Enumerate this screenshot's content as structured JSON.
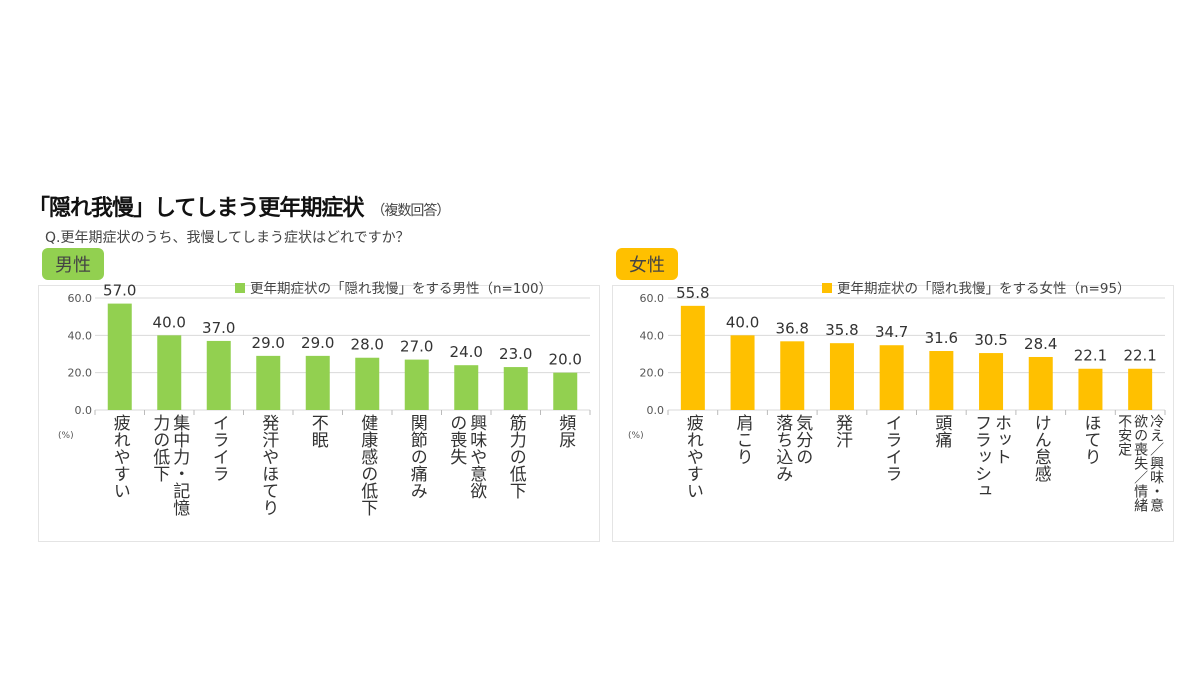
{
  "title": "「隠れ我慢」してしまう更年期症状",
  "title_note": "（複数回答）",
  "question": "Q.更年期症状のうち、我慢してしまう症状はどれですか？",
  "chart_data": [
    {
      "type": "bar",
      "badge": "男性",
      "color": "#92d050",
      "legend": "更年期症状の「隠れ我慢」をする男性（n=100）",
      "unit": "(%)",
      "ylim": [
        0,
        60
      ],
      "yticks": [
        "0.0",
        "20.0",
        "40.0",
        "60.0"
      ],
      "categories": [
        "疲れやすい",
        "集中力・記憶\n力の低下",
        "イライラ",
        "発汗やほてり",
        "不眠",
        "健康感の低下",
        "関節の痛み",
        "興味や意欲\nの喪失",
        "筋力の低下",
        "頻尿"
      ],
      "values": [
        57.0,
        40.0,
        37.0,
        29.0,
        29.0,
        28.0,
        27.0,
        24.0,
        23.0,
        20.0
      ]
    },
    {
      "type": "bar",
      "badge": "女性",
      "color": "#ffc000",
      "legend": "更年期症状の「隠れ我慢」をする女性（n=95）",
      "unit": "(%)",
      "ylim": [
        0,
        60
      ],
      "yticks": [
        "0.0",
        "20.0",
        "40.0",
        "60.0"
      ],
      "categories": [
        "疲れやすい",
        "肩こり",
        "気分の\n落ち込み",
        "発汗",
        "イライラ",
        "頭痛",
        "ホット\nフラッシュ",
        "けん怠感",
        "ほてり",
        "冷え／興味・意\n欲の喪失／情緒\n不安定"
      ],
      "values": [
        55.8,
        40.0,
        36.8,
        35.8,
        34.7,
        31.6,
        30.5,
        28.4,
        22.1,
        22.1
      ]
    }
  ]
}
